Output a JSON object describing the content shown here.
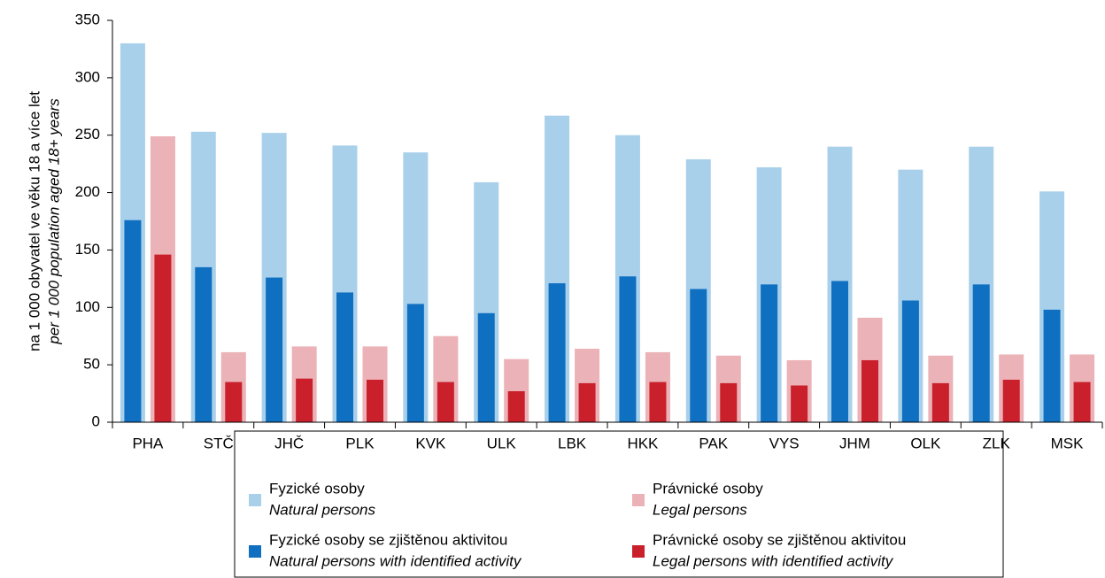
{
  "chart_data": {
    "type": "bar",
    "y_label": "na 1 000 obyvatel ve věku 18 a více let",
    "y_label_en": "per 1 000 population aged 18+ years",
    "categories": [
      "PHA",
      "STČ",
      "JHČ",
      "PLK",
      "KVK",
      "ULK",
      "LBK",
      "HKK",
      "PAK",
      "VYS",
      "JHM",
      "OLK",
      "ZLK",
      "MSK"
    ],
    "series": [
      {
        "name": "Fyzické osoby",
        "name_en": "Natural persons",
        "color": "#a9d0eb",
        "values": [
          330,
          253,
          252,
          241,
          235,
          209,
          267,
          250,
          229,
          222,
          240,
          220,
          240,
          201
        ]
      },
      {
        "name": "Fyzické osoby se zjištěnou aktivitou",
        "name_en": "Natural persons with identified activity",
        "color": "#0f6fc0",
        "values": [
          176,
          135,
          126,
          113,
          103,
          95,
          121,
          127,
          116,
          120,
          123,
          106,
          120,
          98
        ]
      },
      {
        "name": "Právnické osoby",
        "name_en": "Legal persons",
        "color": "#ebb2b7",
        "values": [
          249,
          61,
          66,
          66,
          75,
          55,
          64,
          61,
          58,
          54,
          91,
          58,
          59,
          59
        ]
      },
      {
        "name": "Právnické osoby se zjištěnou aktivitou",
        "name_en": "Legal persons with identified activity",
        "color": "#c9202b",
        "values": [
          146,
          35,
          38,
          37,
          35,
          27,
          34,
          35,
          34,
          32,
          54,
          34,
          37,
          35
        ]
      }
    ],
    "ylim": [
      0,
      350
    ],
    "yticks": [
      0,
      50,
      100,
      150,
      200,
      250,
      300,
      350
    ]
  }
}
